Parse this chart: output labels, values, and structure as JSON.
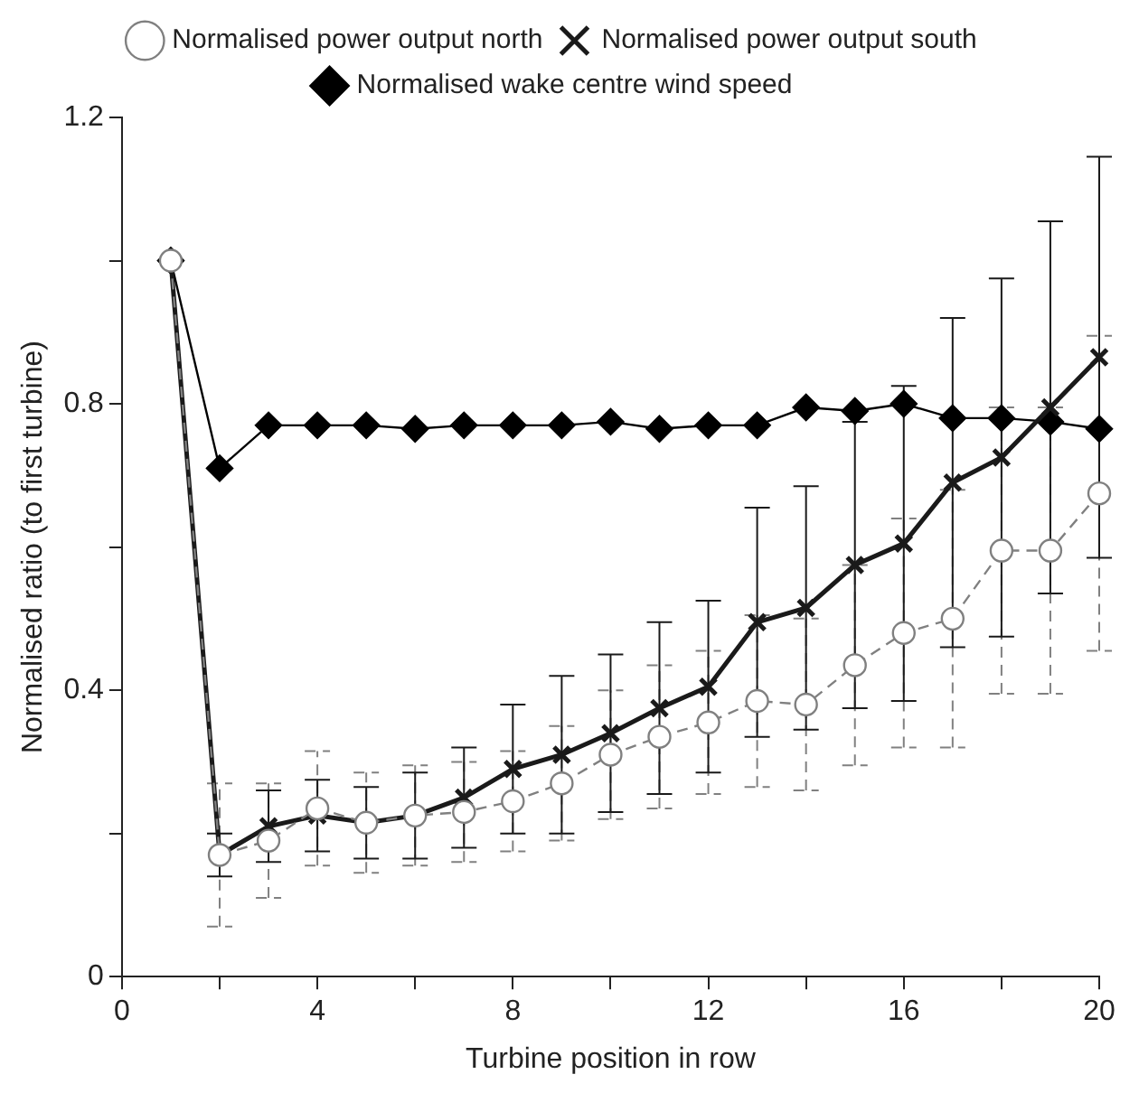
{
  "chart_data": {
    "type": "line",
    "xlabel": "Turbine position in row",
    "ylabel": "Normalised ratio (to first turbine)",
    "x": [
      1,
      2,
      3,
      4,
      5,
      6,
      7,
      8,
      9,
      10,
      11,
      12,
      13,
      14,
      15,
      16,
      17,
      18,
      19,
      20
    ],
    "xlim": [
      0,
      20
    ],
    "xticks": [
      0,
      {
        "value": 2,
        "label": null
      },
      4,
      {
        "value": 6,
        "label": null
      },
      8,
      {
        "value": 10,
        "label": null
      },
      12,
      {
        "value": 14,
        "label": null
      },
      16,
      {
        "value": 18,
        "label": null
      },
      20
    ],
    "ylim": [
      0,
      1.2
    ],
    "yticks": [
      0,
      {
        "value": 0.2,
        "label": null
      },
      0.4,
      {
        "value": 0.6,
        "label": null
      },
      0.8,
      {
        "value": 1.0,
        "label": null
      },
      1.2
    ],
    "grid": false,
    "legend": "top",
    "series": [
      {
        "name": "Normalised power output north",
        "color": "#808080",
        "marker": "circle",
        "line_style": "dashed",
        "values": [
          1.0,
          0.17,
          0.19,
          0.235,
          0.215,
          0.225,
          0.23,
          0.245,
          0.27,
          0.31,
          0.335,
          0.355,
          0.385,
          0.38,
          0.435,
          0.48,
          0.5,
          0.595,
          0.595,
          0.675
        ],
        "errors": [
          null,
          0.1,
          0.08,
          0.08,
          0.07,
          0.07,
          0.07,
          0.07,
          0.08,
          0.09,
          0.1,
          0.1,
          0.12,
          0.12,
          0.14,
          0.16,
          0.18,
          0.2,
          0.2,
          0.22
        ]
      },
      {
        "name": "Normalised power output south",
        "color": "#1a1a1a",
        "marker": "cross",
        "line_style": "solid",
        "values": [
          1.0,
          0.17,
          0.21,
          0.225,
          0.215,
          0.225,
          0.25,
          0.29,
          0.31,
          0.34,
          0.375,
          0.405,
          0.495,
          0.515,
          0.575,
          0.605,
          0.69,
          0.725,
          0.795,
          0.865
        ],
        "errors": [
          null,
          0.03,
          0.05,
          0.05,
          0.05,
          0.06,
          0.07,
          0.09,
          0.11,
          0.11,
          0.12,
          0.12,
          0.16,
          0.17,
          0.2,
          0.22,
          0.23,
          0.25,
          0.26,
          0.28
        ]
      },
      {
        "name": "Normalised wake centre wind speed",
        "color": "#000000",
        "marker": "diamond",
        "line_style": "solid",
        "values": [
          1.0,
          0.71,
          0.77,
          0.77,
          0.77,
          0.765,
          0.77,
          0.77,
          0.77,
          0.775,
          0.765,
          0.77,
          0.77,
          0.795,
          0.79,
          0.8,
          0.78,
          0.78,
          0.775,
          0.765
        ]
      }
    ]
  }
}
